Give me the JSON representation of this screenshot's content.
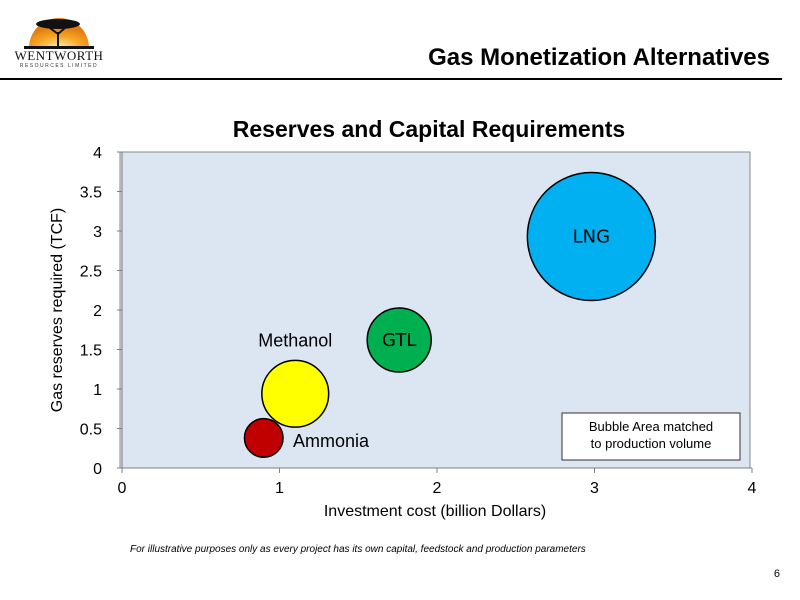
{
  "header": {
    "logo_name": "WENTWORTH",
    "logo_subtitle": "RESOURCES LIMITED",
    "slide_title": "Gas Monetization Alternatives"
  },
  "chart_data": {
    "type": "scatter",
    "subtype": "bubble",
    "title": "Reserves and Capital Requirements",
    "xlabel": "Investment cost (billion Dollars)",
    "ylabel": "Gas reserves required (TCF)",
    "xlim": [
      0,
      4
    ],
    "ylim": [
      0,
      4
    ],
    "xticks": [
      "0",
      "1",
      "2",
      "3",
      "4"
    ],
    "yticks": [
      "0",
      "0.5",
      "1",
      "1.5",
      "2",
      "2.5",
      "3",
      "3.5",
      "4"
    ],
    "grid": false,
    "plot_background": "#dce6f2",
    "points": [
      {
        "label": "Ammonia",
        "x": 0.9,
        "y": 0.38,
        "bubble_size": 0.2,
        "color": "#c00000",
        "label_position": "right"
      },
      {
        "label": "Methanol",
        "x": 1.1,
        "y": 0.94,
        "bubble_size": 0.6,
        "color": "#ffff00",
        "label_position": "above"
      },
      {
        "label": "GTL",
        "x": 1.76,
        "y": 1.62,
        "bubble_size": 0.55,
        "color": "#00b050",
        "label_position": "center"
      },
      {
        "label": "LNG",
        "x": 2.98,
        "y": 2.93,
        "bubble_size": 2.2,
        "color": "#00b0f0",
        "label_position": "center"
      }
    ],
    "legend_note": "Bubble Area matched to production volume",
    "legend_placement": "bottom-right"
  },
  "footnote": "For illustrative purposes only as every project has its own capital, feedstock and production parameters",
  "page_number": "6"
}
